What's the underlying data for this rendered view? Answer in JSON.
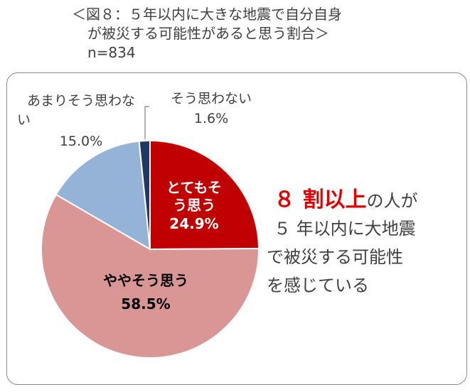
{
  "title": {
    "line1": "＜図８：５年以内に大きな地震で自分自身",
    "line2": "が被災する可能性があると思う割合＞",
    "line3": "n=834"
  },
  "callout": {
    "emphasis": "８ 割以上",
    "line1_rest": "の人が",
    "line2": "５ 年以内に大地震",
    "line3": "で被災する可能性",
    "line4": "を感じている",
    "emphasis_color": "#e00000"
  },
  "chart_data": {
    "type": "pie",
    "n": 834,
    "start": "12 o'clock",
    "direction": "clockwise",
    "slices": [
      {
        "label_line1": "とてもそ",
        "label_line2": "う思う",
        "value_text": "24.9%",
        "value": 24.9,
        "color": "#c00000",
        "label_color": "#ffffff"
      },
      {
        "label_line1": "ややそう思う",
        "label_line2": "",
        "value_text": "58.5%",
        "value": 58.5,
        "color": "#da9694",
        "label_color": "#000000"
      },
      {
        "label_line1": "あまりそう思わな",
        "label_line2": "い",
        "value_text": "15.0%",
        "value": 15.0,
        "color": "#95b3d7",
        "label_color": "#404040"
      },
      {
        "label_line1": "そう思わない",
        "label_line2": "",
        "value_text": "1.6%",
        "value": 1.6,
        "color": "#1f3864",
        "label_color": "#404040"
      }
    ]
  }
}
